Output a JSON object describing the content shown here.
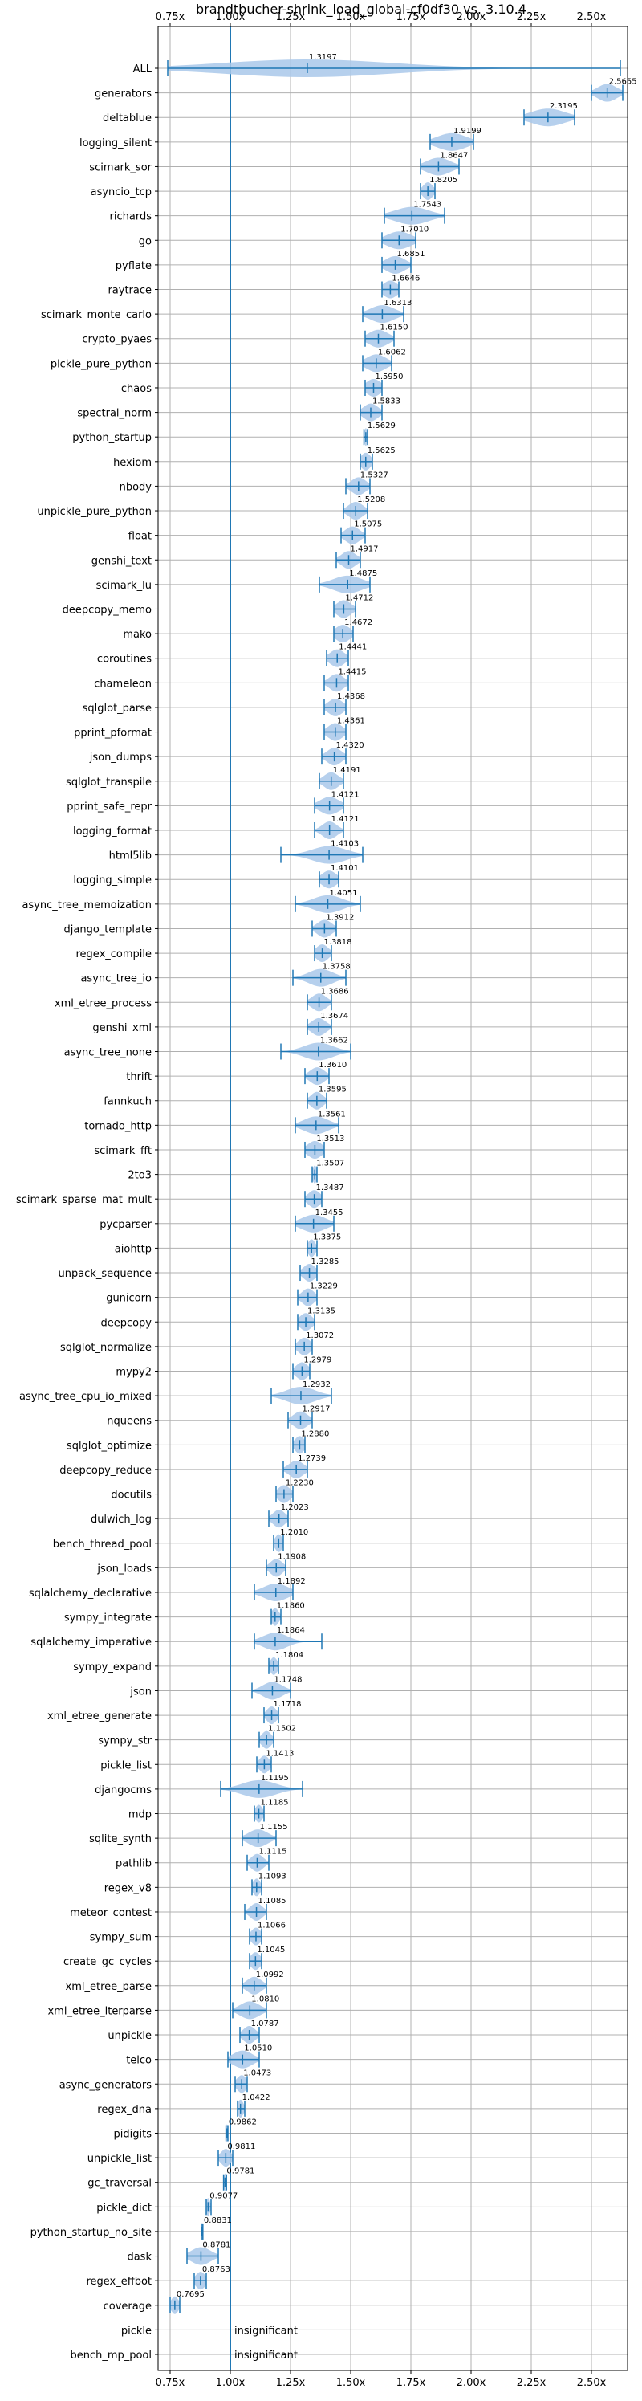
{
  "chart_data": {
    "type": "violin",
    "title": "brandtbucher-shrink_load_global-cf0df30 vs. 3.10.4",
    "xlim": [
      0.7,
      2.65
    ],
    "x_ticks": [
      0.75,
      1.0,
      1.25,
      1.5,
      1.75,
      2.0,
      2.25,
      2.5
    ],
    "x_tick_labels": [
      "0.75x",
      "1.00x",
      "1.25x",
      "1.50x",
      "1.75x",
      "2.00x",
      "2.25x",
      "2.50x"
    ],
    "reference_line": 1.0,
    "grid": true,
    "colors": {
      "violin": "#a9c8ea",
      "line": "#1f77b4"
    },
    "insignificant_text": "insignificant",
    "benchmarks": [
      {
        "name": "ALL",
        "value": 1.3197,
        "label": "1.3197",
        "min": 0.74,
        "max": 2.62,
        "spread": 0.35
      },
      {
        "name": "generators",
        "value": 2.5655,
        "label": "2.5655",
        "min": 2.5,
        "max": 2.63,
        "spread": 0.04
      },
      {
        "name": "deltablue",
        "value": 2.3195,
        "label": "2.3195",
        "min": 2.22,
        "max": 2.43,
        "spread": 0.07
      },
      {
        "name": "logging_silent",
        "value": 1.9199,
        "label": "1.9199",
        "min": 1.83,
        "max": 2.01,
        "spread": 0.06
      },
      {
        "name": "scimark_sor",
        "value": 1.8647,
        "label": "1.8647",
        "min": 1.79,
        "max": 1.95,
        "spread": 0.05
      },
      {
        "name": "asyncio_tcp",
        "value": 1.8205,
        "label": "1.8205",
        "min": 1.79,
        "max": 1.85,
        "spread": 0.02
      },
      {
        "name": "richards",
        "value": 1.7543,
        "label": "1.7543",
        "min": 1.64,
        "max": 1.89,
        "spread": 0.07
      },
      {
        "name": "go",
        "value": 1.701,
        "label": "1.7010",
        "min": 1.63,
        "max": 1.77,
        "spread": 0.05
      },
      {
        "name": "pyflate",
        "value": 1.6851,
        "label": "1.6851",
        "min": 1.63,
        "max": 1.75,
        "spread": 0.04
      },
      {
        "name": "raytrace",
        "value": 1.6646,
        "label": "1.6646",
        "min": 1.63,
        "max": 1.7,
        "spread": 0.03
      },
      {
        "name": "scimark_monte_carlo",
        "value": 1.6313,
        "label": "1.6313",
        "min": 1.55,
        "max": 1.72,
        "spread": 0.05
      },
      {
        "name": "crypto_pyaes",
        "value": 1.615,
        "label": "1.6150",
        "min": 1.56,
        "max": 1.68,
        "spread": 0.04
      },
      {
        "name": "pickle_pure_python",
        "value": 1.6062,
        "label": "1.6062",
        "min": 1.55,
        "max": 1.67,
        "spread": 0.04
      },
      {
        "name": "chaos",
        "value": 1.595,
        "label": "1.5950",
        "min": 1.56,
        "max": 1.63,
        "spread": 0.03
      },
      {
        "name": "spectral_norm",
        "value": 1.5833,
        "label": "1.5833",
        "min": 1.54,
        "max": 1.63,
        "spread": 0.03
      },
      {
        "name": "python_startup",
        "value": 1.5629,
        "label": "1.5629",
        "min": 1.555,
        "max": 1.57,
        "spread": 0.006
      },
      {
        "name": "hexiom",
        "value": 1.5625,
        "label": "1.5625",
        "min": 1.54,
        "max": 1.59,
        "spread": 0.02
      },
      {
        "name": "nbody",
        "value": 1.5327,
        "label": "1.5327",
        "min": 1.48,
        "max": 1.58,
        "spread": 0.03
      },
      {
        "name": "unpickle_pure_python",
        "value": 1.5208,
        "label": "1.5208",
        "min": 1.47,
        "max": 1.57,
        "spread": 0.03
      },
      {
        "name": "float",
        "value": 1.5075,
        "label": "1.5075",
        "min": 1.46,
        "max": 1.56,
        "spread": 0.03
      },
      {
        "name": "genshi_text",
        "value": 1.4917,
        "label": "1.4917",
        "min": 1.44,
        "max": 1.54,
        "spread": 0.03
      },
      {
        "name": "scimark_lu",
        "value": 1.4875,
        "label": "1.4875",
        "min": 1.37,
        "max": 1.58,
        "spread": 0.06
      },
      {
        "name": "deepcopy_memo",
        "value": 1.4712,
        "label": "1.4712",
        "min": 1.43,
        "max": 1.52,
        "spread": 0.03
      },
      {
        "name": "mako",
        "value": 1.4672,
        "label": "1.4672",
        "min": 1.43,
        "max": 1.51,
        "spread": 0.03
      },
      {
        "name": "coroutines",
        "value": 1.4441,
        "label": "1.4441",
        "min": 1.4,
        "max": 1.49,
        "spread": 0.03
      },
      {
        "name": "chameleon",
        "value": 1.4415,
        "label": "1.4415",
        "min": 1.39,
        "max": 1.49,
        "spread": 0.03
      },
      {
        "name": "sqlglot_parse",
        "value": 1.4368,
        "label": "1.4368",
        "min": 1.39,
        "max": 1.48,
        "spread": 0.03
      },
      {
        "name": "pprint_pformat",
        "value": 1.4361,
        "label": "1.4361",
        "min": 1.39,
        "max": 1.48,
        "spread": 0.03
      },
      {
        "name": "json_dumps",
        "value": 1.432,
        "label": "1.4320",
        "min": 1.38,
        "max": 1.48,
        "spread": 0.03
      },
      {
        "name": "sqlglot_transpile",
        "value": 1.4191,
        "label": "1.4191",
        "min": 1.37,
        "max": 1.47,
        "spread": 0.03
      },
      {
        "name": "pprint_safe_repr",
        "value": 1.4121,
        "label": "1.4121",
        "min": 1.35,
        "max": 1.47,
        "spread": 0.04
      },
      {
        "name": "logging_format",
        "value": 1.4121,
        "label": "1.4121",
        "min": 1.35,
        "max": 1.47,
        "spread": 0.03
      },
      {
        "name": "html5lib",
        "value": 1.4103,
        "label": "1.4103",
        "min": 1.21,
        "max": 1.55,
        "spread": 0.07
      },
      {
        "name": "logging_simple",
        "value": 1.4101,
        "label": "1.4101",
        "min": 1.37,
        "max": 1.45,
        "spread": 0.03
      },
      {
        "name": "async_tree_memoization",
        "value": 1.4051,
        "label": "1.4051",
        "min": 1.27,
        "max": 1.54,
        "spread": 0.06
      },
      {
        "name": "django_template",
        "value": 1.3912,
        "label": "1.3912",
        "min": 1.34,
        "max": 1.44,
        "spread": 0.03
      },
      {
        "name": "regex_compile",
        "value": 1.3818,
        "label": "1.3818",
        "min": 1.35,
        "max": 1.42,
        "spread": 0.025
      },
      {
        "name": "async_tree_io",
        "value": 1.3758,
        "label": "1.3758",
        "min": 1.26,
        "max": 1.48,
        "spread": 0.05
      },
      {
        "name": "xml_etree_process",
        "value": 1.3686,
        "label": "1.3686",
        "min": 1.32,
        "max": 1.42,
        "spread": 0.03
      },
      {
        "name": "genshi_xml",
        "value": 1.3674,
        "label": "1.3674",
        "min": 1.32,
        "max": 1.42,
        "spread": 0.03
      },
      {
        "name": "async_tree_none",
        "value": 1.3662,
        "label": "1.3662",
        "min": 1.21,
        "max": 1.5,
        "spread": 0.06
      },
      {
        "name": "thrift",
        "value": 1.361,
        "label": "1.3610",
        "min": 1.31,
        "max": 1.41,
        "spread": 0.03
      },
      {
        "name": "fannkuch",
        "value": 1.3595,
        "label": "1.3595",
        "min": 1.32,
        "max": 1.4,
        "spread": 0.025
      },
      {
        "name": "tornado_http",
        "value": 1.3561,
        "label": "1.3561",
        "min": 1.27,
        "max": 1.45,
        "spread": 0.05
      },
      {
        "name": "scimark_fft",
        "value": 1.3513,
        "label": "1.3513",
        "min": 1.31,
        "max": 1.39,
        "spread": 0.03
      },
      {
        "name": "2to3",
        "value": 1.3507,
        "label": "1.3507",
        "min": 1.34,
        "max": 1.36,
        "spread": 0.01
      },
      {
        "name": "scimark_sparse_mat_mult",
        "value": 1.3487,
        "label": "1.3487",
        "min": 1.31,
        "max": 1.38,
        "spread": 0.025
      },
      {
        "name": "pycparser",
        "value": 1.3455,
        "label": "1.3455",
        "min": 1.27,
        "max": 1.43,
        "spread": 0.05
      },
      {
        "name": "aiohttp",
        "value": 1.3375,
        "label": "1.3375",
        "min": 1.32,
        "max": 1.36,
        "spread": 0.015
      },
      {
        "name": "unpack_sequence",
        "value": 1.3285,
        "label": "1.3285",
        "min": 1.29,
        "max": 1.36,
        "spread": 0.025
      },
      {
        "name": "gunicorn",
        "value": 1.3229,
        "label": "1.3229",
        "min": 1.28,
        "max": 1.36,
        "spread": 0.025
      },
      {
        "name": "deepcopy",
        "value": 1.3135,
        "label": "1.3135",
        "min": 1.28,
        "max": 1.35,
        "spread": 0.025
      },
      {
        "name": "sqlglot_normalize",
        "value": 1.3072,
        "label": "1.3072",
        "min": 1.27,
        "max": 1.34,
        "spread": 0.025
      },
      {
        "name": "mypy2",
        "value": 1.2979,
        "label": "1.2979",
        "min": 1.26,
        "max": 1.33,
        "spread": 0.025
      },
      {
        "name": "async_tree_cpu_io_mixed",
        "value": 1.2932,
        "label": "1.2932",
        "min": 1.17,
        "max": 1.42,
        "spread": 0.06
      },
      {
        "name": "nqueens",
        "value": 1.2917,
        "label": "1.2917",
        "min": 1.24,
        "max": 1.34,
        "spread": 0.03
      },
      {
        "name": "sqlglot_optimize",
        "value": 1.288,
        "label": "1.2880",
        "min": 1.26,
        "max": 1.31,
        "spread": 0.02
      },
      {
        "name": "deepcopy_reduce",
        "value": 1.2739,
        "label": "1.2739",
        "min": 1.22,
        "max": 1.32,
        "spread": 0.03
      },
      {
        "name": "docutils",
        "value": 1.223,
        "label": "1.2230",
        "min": 1.19,
        "max": 1.26,
        "spread": 0.025
      },
      {
        "name": "dulwich_log",
        "value": 1.2023,
        "label": "1.2023",
        "min": 1.16,
        "max": 1.24,
        "spread": 0.025
      },
      {
        "name": "bench_thread_pool",
        "value": 1.201,
        "label": "1.2010",
        "min": 1.18,
        "max": 1.22,
        "spread": 0.015
      },
      {
        "name": "json_loads",
        "value": 1.1908,
        "label": "1.1908",
        "min": 1.15,
        "max": 1.23,
        "spread": 0.025
      },
      {
        "name": "sqlalchemy_declarative",
        "value": 1.1892,
        "label": "1.1892",
        "min": 1.1,
        "max": 1.26,
        "spread": 0.05
      },
      {
        "name": "sympy_integrate",
        "value": 1.186,
        "label": "1.1860",
        "min": 1.17,
        "max": 1.21,
        "spread": 0.015
      },
      {
        "name": "sqlalchemy_imperative",
        "value": 1.1864,
        "label": "1.1864",
        "min": 1.1,
        "max": 1.38,
        "spread": 0.05
      },
      {
        "name": "sympy_expand",
        "value": 1.1804,
        "label": "1.1804",
        "min": 1.16,
        "max": 1.2,
        "spread": 0.015
      },
      {
        "name": "json",
        "value": 1.1748,
        "label": "1.1748",
        "min": 1.09,
        "max": 1.25,
        "spread": 0.04
      },
      {
        "name": "xml_etree_generate",
        "value": 1.1718,
        "label": "1.1718",
        "min": 1.14,
        "max": 1.2,
        "spread": 0.02
      },
      {
        "name": "sympy_str",
        "value": 1.1502,
        "label": "1.1502",
        "min": 1.12,
        "max": 1.18,
        "spread": 0.02
      },
      {
        "name": "pickle_list",
        "value": 1.1413,
        "label": "1.1413",
        "min": 1.11,
        "max": 1.17,
        "spread": 0.02
      },
      {
        "name": "djangocms",
        "value": 1.1195,
        "label": "1.1195",
        "min": 0.96,
        "max": 1.3,
        "spread": 0.07
      },
      {
        "name": "mdp",
        "value": 1.1185,
        "label": "1.1185",
        "min": 1.1,
        "max": 1.14,
        "spread": 0.015
      },
      {
        "name": "sqlite_synth",
        "value": 1.1155,
        "label": "1.1155",
        "min": 1.05,
        "max": 1.19,
        "spread": 0.04
      },
      {
        "name": "pathlib",
        "value": 1.1115,
        "label": "1.1115",
        "min": 1.07,
        "max": 1.16,
        "spread": 0.025
      },
      {
        "name": "regex_v8",
        "value": 1.1093,
        "label": "1.1093",
        "min": 1.09,
        "max": 1.13,
        "spread": 0.015
      },
      {
        "name": "meteor_contest",
        "value": 1.1085,
        "label": "1.1085",
        "min": 1.06,
        "max": 1.15,
        "spread": 0.025
      },
      {
        "name": "sympy_sum",
        "value": 1.1066,
        "label": "1.1066",
        "min": 1.08,
        "max": 1.13,
        "spread": 0.02
      },
      {
        "name": "create_gc_cycles",
        "value": 1.1045,
        "label": "1.1045",
        "min": 1.08,
        "max": 1.13,
        "spread": 0.02
      },
      {
        "name": "xml_etree_parse",
        "value": 1.0992,
        "label": "1.0992",
        "min": 1.05,
        "max": 1.15,
        "spread": 0.03
      },
      {
        "name": "xml_etree_iterparse",
        "value": 1.081,
        "label": "1.0810",
        "min": 1.01,
        "max": 1.15,
        "spread": 0.04
      },
      {
        "name": "unpickle",
        "value": 1.0787,
        "label": "1.0787",
        "min": 1.04,
        "max": 1.12,
        "spread": 0.025
      },
      {
        "name": "telco",
        "value": 1.051,
        "label": "1.0510",
        "min": 0.99,
        "max": 1.12,
        "spread": 0.04
      },
      {
        "name": "async_generators",
        "value": 1.0473,
        "label": "1.0473",
        "min": 1.02,
        "max": 1.07,
        "spread": 0.02
      },
      {
        "name": "regex_dna",
        "value": 1.0422,
        "label": "1.0422",
        "min": 1.03,
        "max": 1.06,
        "spread": 0.012
      },
      {
        "name": "pidigits",
        "value": 0.9862,
        "label": "0.9862",
        "min": 0.982,
        "max": 0.99,
        "spread": 0.004
      },
      {
        "name": "unpickle_list",
        "value": 0.9811,
        "label": "0.9811",
        "min": 0.95,
        "max": 1.01,
        "spread": 0.02
      },
      {
        "name": "gc_traversal",
        "value": 0.9781,
        "label": "0.9781",
        "min": 0.972,
        "max": 0.984,
        "spread": 0.005
      },
      {
        "name": "pickle_dict",
        "value": 0.9077,
        "label": "0.9077",
        "min": 0.9,
        "max": 0.92,
        "spread": 0.008
      },
      {
        "name": "python_startup_no_site",
        "value": 0.8831,
        "label": "0.8831",
        "min": 0.88,
        "max": 0.886,
        "spread": 0.003
      },
      {
        "name": "dask",
        "value": 0.8781,
        "label": "0.8781",
        "min": 0.82,
        "max": 0.95,
        "spread": 0.04
      },
      {
        "name": "regex_effbot",
        "value": 0.8763,
        "label": "0.8763",
        "min": 0.85,
        "max": 0.9,
        "spread": 0.02
      },
      {
        "name": "coverage",
        "value": 0.7695,
        "label": "0.7695",
        "min": 0.75,
        "max": 0.79,
        "spread": 0.015
      },
      {
        "name": "pickle",
        "insignificant": true
      },
      {
        "name": "bench_mp_pool",
        "insignificant": true
      }
    ]
  }
}
